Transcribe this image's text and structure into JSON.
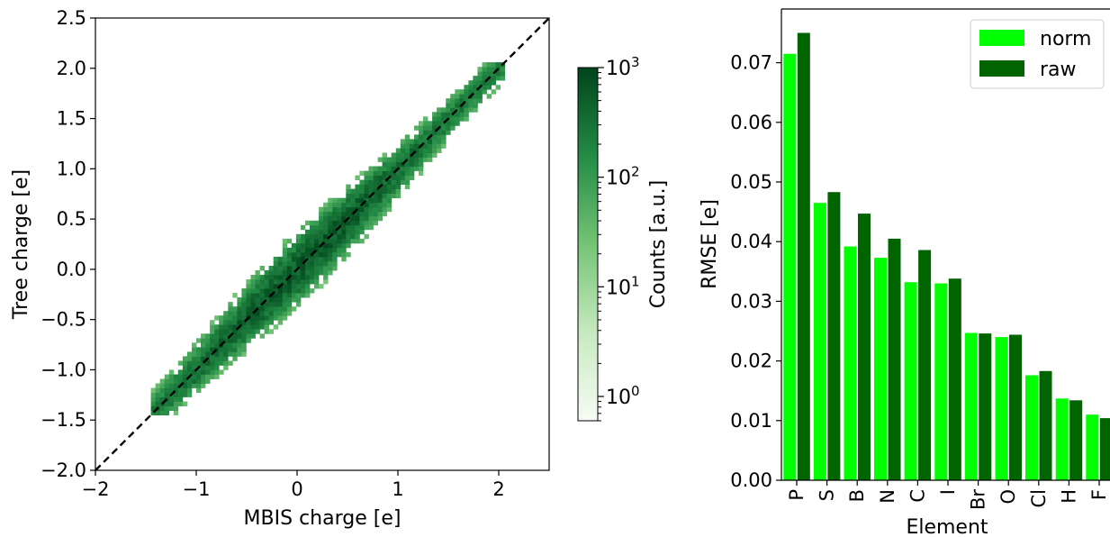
{
  "chart_data": [
    {
      "type": "heatmap",
      "xlabel": "MBIS charge [e]",
      "ylabel": "Tree charge [e]",
      "xlim": [
        -2.0,
        2.5
      ],
      "ylim": [
        -2.0,
        2.5
      ],
      "xticks": [
        "−2",
        "−1",
        "0",
        "1",
        "2"
      ],
      "xtick_values": [
        -2,
        -1,
        0,
        1,
        2
      ],
      "yticks": [
        "−2.0",
        "−1.5",
        "−1.0",
        "−0.5",
        "0.0",
        "0.5",
        "1.0",
        "1.5",
        "2.0",
        "2.5"
      ],
      "ytick_values": [
        -2.0,
        -1.5,
        -1.0,
        -0.5,
        0.0,
        0.5,
        1.0,
        1.5,
        2.0,
        2.5
      ],
      "reference_line": {
        "style": "dashed",
        "color": "#000000",
        "from": [
          -2.0,
          -2.0
        ],
        "to": [
          2.5,
          2.5
        ]
      },
      "density_ridge": [
        {
          "x": -1.2,
          "y": -1.1
        },
        {
          "x": -0.5,
          "y": -0.45
        },
        {
          "x": 0.0,
          "y": 0.0
        },
        {
          "x": 0.5,
          "y": 0.5
        },
        {
          "x": 1.0,
          "y": 1.0
        },
        {
          "x": 1.5,
          "y": 1.5
        },
        {
          "x": 2.0,
          "y": 1.95
        }
      ],
      "colorbar": {
        "label": "Counts [a.u.]",
        "scale": "log",
        "range": [
          0.6,
          1000
        ],
        "ticks": [
          {
            "base": "10",
            "exp": "0",
            "value": 1
          },
          {
            "base": "10",
            "exp": "1",
            "value": 10
          },
          {
            "base": "10",
            "exp": "2",
            "value": 100
          },
          {
            "base": "10",
            "exp": "3",
            "value": 1000
          }
        ],
        "colors": [
          "#f7fcf5",
          "#c7e9c0",
          "#74c476",
          "#238b45",
          "#00441b"
        ]
      },
      "grid": false
    },
    {
      "type": "bar",
      "xlabel": "Element",
      "ylabel": "RMSE [e]",
      "ylim": [
        0,
        0.079
      ],
      "yticks": [
        "0.00",
        "0.01",
        "0.02",
        "0.03",
        "0.04",
        "0.05",
        "0.06",
        "0.07"
      ],
      "ytick_values": [
        0.0,
        0.01,
        0.02,
        0.03,
        0.04,
        0.05,
        0.06,
        0.07
      ],
      "categories": [
        "P",
        "S",
        "B",
        "N",
        "C",
        "I",
        "Br",
        "O",
        "Cl",
        "H",
        "F"
      ],
      "series": [
        {
          "name": "norm",
          "color": "#00ff00",
          "values": [
            0.0715,
            0.0465,
            0.0392,
            0.0373,
            0.0332,
            0.033,
            0.0247,
            0.024,
            0.0176,
            0.0137,
            0.011
          ]
        },
        {
          "name": "raw",
          "color": "#006400",
          "values": [
            0.075,
            0.0483,
            0.0447,
            0.0405,
            0.0386,
            0.0338,
            0.0246,
            0.0244,
            0.0183,
            0.0134,
            0.0104
          ]
        }
      ],
      "legend_position": "top-right",
      "grid": false
    }
  ]
}
